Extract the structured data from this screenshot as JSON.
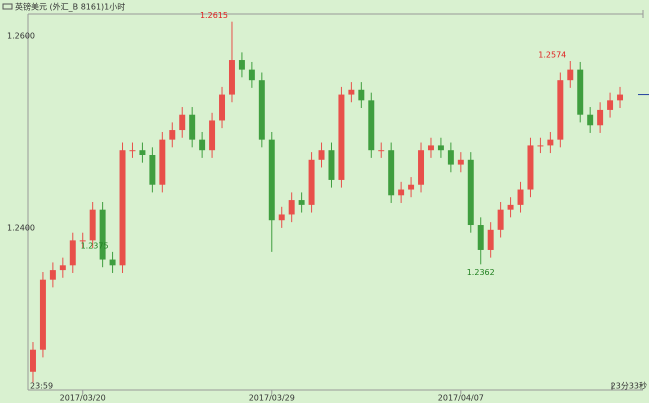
{
  "chart_data": {
    "type": "candlestick",
    "title": "英镑美元 (外汇_B 8161)1小时",
    "categories": [
      null,
      null,
      null,
      null,
      null,
      "2017/03/20",
      null,
      null,
      null,
      null,
      null,
      null,
      null,
      null,
      null,
      null,
      null,
      null,
      null,
      null,
      null,
      null,
      null,
      null,
      "2017/03/29",
      null,
      null,
      null,
      null,
      null,
      null,
      null,
      null,
      null,
      null,
      null,
      null,
      null,
      null,
      null,
      null,
      null,
      null,
      "2017/04/07",
      null,
      null,
      null,
      null,
      null,
      null,
      null,
      null,
      null,
      null,
      null,
      null,
      null,
      null,
      null,
      null
    ],
    "open": [
      1.225,
      1.2273,
      1.2346,
      1.2356,
      1.2361,
      1.2387,
      1.2387,
      1.2419,
      1.2367,
      1.2361,
      1.2481,
      1.2481,
      1.2476,
      1.2445,
      1.2492,
      1.2502,
      1.2518,
      1.2492,
      1.2481,
      1.2512,
      1.2539,
      1.2575,
      1.2565,
      1.2554,
      1.2492,
      1.2408,
      1.2414,
      1.2429,
      1.2424,
      1.2471,
      1.2481,
      1.245,
      1.2539,
      1.2544,
      1.2533,
      1.2481,
      1.2481,
      1.2434,
      1.244,
      1.2445,
      1.2481,
      1.2486,
      1.2481,
      1.2466,
      1.2471,
      1.2403,
      1.2377,
      1.2398,
      1.2419,
      1.2424,
      1.244,
      1.2486,
      1.2486,
      1.2492,
      1.2554,
      1.2565,
      1.2518,
      1.2507,
      1.2523,
      1.2533
    ],
    "high": [
      1.2281,
      1.2354,
      1.2364,
      1.2369,
      1.2395,
      1.2395,
      1.2427,
      1.2427,
      1.2375,
      1.2489,
      1.2489,
      1.2489,
      1.2484,
      1.25,
      1.251,
      1.2526,
      1.2526,
      1.25,
      1.252,
      1.2547,
      1.2615,
      1.2583,
      1.2573,
      1.2562,
      1.25,
      1.2422,
      1.2437,
      1.2437,
      1.2479,
      1.2489,
      1.2489,
      1.2547,
      1.2552,
      1.2552,
      1.2541,
      1.2489,
      1.2489,
      1.2448,
      1.2453,
      1.2489,
      1.2494,
      1.2494,
      1.2489,
      1.2479,
      1.2479,
      1.2411,
      1.2406,
      1.2427,
      1.2432,
      1.2448,
      1.2494,
      1.2494,
      1.25,
      1.2562,
      1.2574,
      1.2573,
      1.2526,
      1.2531,
      1.2541,
      1.2547
    ],
    "low": [
      1.2239,
      1.2265,
      1.2338,
      1.2348,
      1.2353,
      1.2379,
      1.2379,
      1.2359,
      1.2353,
      1.2353,
      1.2473,
      1.2468,
      1.2437,
      1.2437,
      1.2484,
      1.2494,
      1.2484,
      1.2473,
      1.2473,
      1.2504,
      1.2531,
      1.2557,
      1.2546,
      1.2484,
      1.2375,
      1.24,
      1.2406,
      1.2416,
      1.2416,
      1.2463,
      1.2442,
      1.2442,
      1.2531,
      1.2525,
      1.2473,
      1.2473,
      1.2426,
      1.2426,
      1.2432,
      1.2437,
      1.2473,
      1.2473,
      1.2458,
      1.2458,
      1.2395,
      1.2362,
      1.2369,
      1.239,
      1.2411,
      1.2416,
      1.2432,
      1.2478,
      1.2478,
      1.2484,
      1.2546,
      1.251,
      1.2499,
      1.2499,
      1.2515,
      1.2525
    ],
    "close": [
      1.2273,
      1.2346,
      1.2356,
      1.2361,
      1.2387,
      1.2387,
      1.2419,
      1.2367,
      1.2361,
      1.2481,
      1.2481,
      1.2476,
      1.2445,
      1.2492,
      1.2502,
      1.2518,
      1.2492,
      1.2481,
      1.2512,
      1.2539,
      1.2575,
      1.2565,
      1.2554,
      1.2492,
      1.2408,
      1.2414,
      1.2429,
      1.2424,
      1.2471,
      1.2481,
      1.245,
      1.2539,
      1.2544,
      1.2533,
      1.2481,
      1.2481,
      1.2434,
      1.244,
      1.2445,
      1.2481,
      1.2486,
      1.2481,
      1.2466,
      1.2471,
      1.2403,
      1.2377,
      1.2398,
      1.2419,
      1.2424,
      1.244,
      1.2486,
      1.2486,
      1.2492,
      1.2554,
      1.2565,
      1.2518,
      1.2507,
      1.2523,
      1.2533,
      1.2539
    ],
    "up_color": "#e8504a",
    "down_color": "#3f9e3f",
    "ylim": [
      1.2231,
      1.2623
    ],
    "yticks": [
      {
        "value": 1.26,
        "label": "1.2600"
      },
      {
        "value": 1.24,
        "label": "1.2400"
      }
    ],
    "annotations": [
      {
        "value": 1.2615,
        "label": "1.2615",
        "color": "#e02020"
      },
      {
        "value": 1.2375,
        "label": "1.2375",
        "color": "#208020"
      },
      {
        "value": 1.2362,
        "label": "1.2362",
        "color": "#208020"
      },
      {
        "value": 1.2574,
        "label": "1.2574",
        "color": "#e02020"
      }
    ],
    "start_time": "23:59",
    "countdown": "23分33秒"
  }
}
